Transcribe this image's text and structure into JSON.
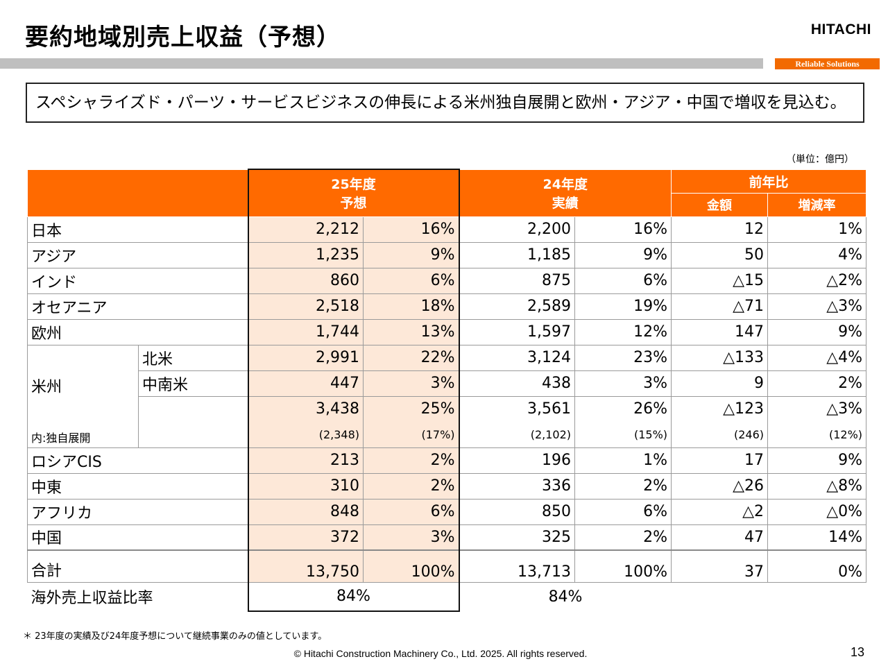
{
  "header": {
    "title": "要約地域別売上収益（予想）",
    "logo": "HITACHI",
    "tagline": "Reliable Solutions"
  },
  "banner": "スペシャライズド・パーツ・サービスビジネスの伸長による米州独自展開と欧州・アジア・中国で増収を見込む。",
  "unit": "（単位：億円）",
  "table": {
    "col_fy25_line1": "25年度",
    "col_fy25_line2": "予想",
    "col_fy24_line1": "24年度",
    "col_fy24_line2": "実績",
    "col_yoy": "前年比",
    "col_amount": "金額",
    "col_rate": "増減率",
    "rows": {
      "japan": {
        "label": "日本",
        "fc": "2,212",
        "fc_pct": "16%",
        "act": "2,200",
        "act_pct": "16%",
        "diff": "12",
        "rate": "1%"
      },
      "asia": {
        "label": "アジア",
        "fc": "1,235",
        "fc_pct": "9%",
        "act": "1,185",
        "act_pct": "9%",
        "diff": "50",
        "rate": "4%"
      },
      "india": {
        "label": "インド",
        "fc": "860",
        "fc_pct": "6%",
        "act": "875",
        "act_pct": "6%",
        "diff": "△15",
        "rate": "△2%"
      },
      "oceania": {
        "label": "オセアニア",
        "fc": "2,518",
        "fc_pct": "18%",
        "act": "2,589",
        "act_pct": "19%",
        "diff": "△71",
        "rate": "△3%"
      },
      "europe": {
        "label": "欧州",
        "fc": "1,744",
        "fc_pct": "13%",
        "act": "1,597",
        "act_pct": "12%",
        "diff": "147",
        "rate": "9%"
      },
      "americas_label": "米州",
      "north_america": {
        "label": "北米",
        "fc": "2,991",
        "fc_pct": "22%",
        "act": "3,124",
        "act_pct": "23%",
        "diff": "△133",
        "rate": "△4%"
      },
      "latin_america": {
        "label": "中南米",
        "fc": "447",
        "fc_pct": "3%",
        "act": "438",
        "act_pct": "3%",
        "diff": "9",
        "rate": "2%"
      },
      "americas_total": {
        "fc": "3,438",
        "fc_pct": "25%",
        "act": "3,561",
        "act_pct": "26%",
        "diff": "△123",
        "rate": "△3%"
      },
      "americas_own": {
        "label": "内:独自展開",
        "fc": "(2,348)",
        "fc_pct": "(17%)",
        "act": "(2,102)",
        "act_pct": "(15%)",
        "diff": "(246)",
        "rate": "(12%)"
      },
      "russia_cis": {
        "label": "ロシアCIS",
        "fc": "213",
        "fc_pct": "2%",
        "act": "196",
        "act_pct": "1%",
        "diff": "17",
        "rate": "9%"
      },
      "middle_east": {
        "label": "中東",
        "fc": "310",
        "fc_pct": "2%",
        "act": "336",
        "act_pct": "2%",
        "diff": "△26",
        "rate": "△8%"
      },
      "africa": {
        "label": "アフリカ",
        "fc": "848",
        "fc_pct": "6%",
        "act": "850",
        "act_pct": "6%",
        "diff": "△2",
        "rate": "△0%"
      },
      "china": {
        "label": "中国",
        "fc": "372",
        "fc_pct": "3%",
        "act": "325",
        "act_pct": "2%",
        "diff": "47",
        "rate": "14%"
      },
      "total": {
        "label": "合計",
        "fc": "13,750",
        "fc_pct": "100%",
        "act": "13,713",
        "act_pct": "100%",
        "diff": "37",
        "rate": "0%"
      },
      "overseas_ratio": {
        "label": "海外売上収益比率",
        "fc": "84%",
        "act": "84%"
      }
    }
  },
  "footnote": "＊ 23年度の実績及び24年度予想について継続事業のみの値としています。",
  "copyright": "© Hitachi Construction Machinery Co., Ltd. 2025. All rights reserved.",
  "page_number": "13"
}
